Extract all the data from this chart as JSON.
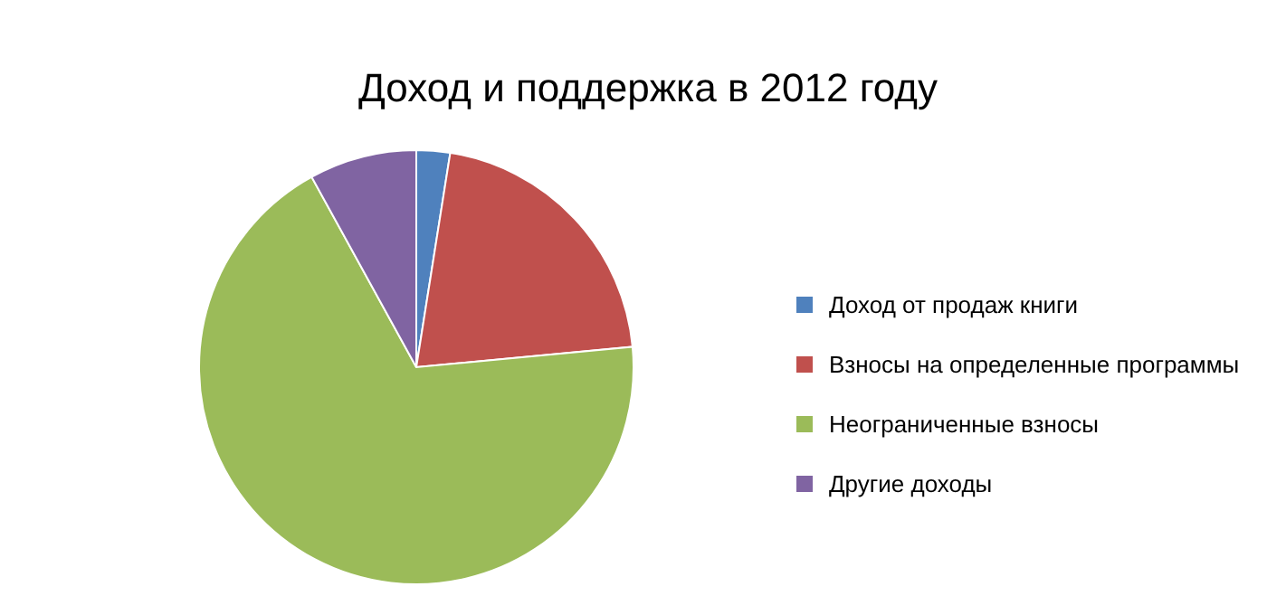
{
  "chart_data": {
    "type": "pie",
    "title": "Доход и поддержка в 2012 году",
    "categories": [
      "Доход от продаж книги",
      "Взносы на определенные программы",
      "Неограниченные взносы",
      "Другие доходы"
    ],
    "values": [
      2.5,
      21,
      68.5,
      8
    ],
    "colors": [
      "#4f81bd",
      "#c0504d",
      "#9bbb59",
      "#8064a2"
    ],
    "legend": "right"
  }
}
